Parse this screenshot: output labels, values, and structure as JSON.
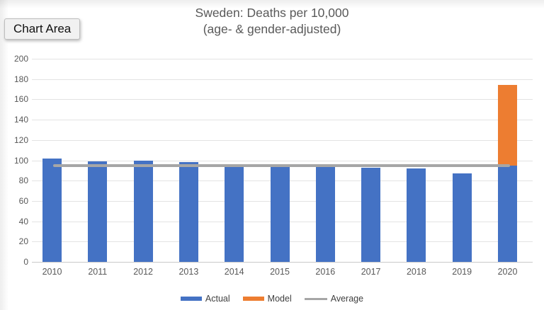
{
  "tooltip": {
    "label": "Chart Area"
  },
  "title": {
    "line1": "Sweden: Deaths per 10,000",
    "line2": "(age- & gender-adjusted)"
  },
  "colors": {
    "actual": "#4472C4",
    "model": "#ED7D31",
    "average": "#A6A6A6",
    "axis_text": "#595959",
    "legend_text": "#404040"
  },
  "legend": {
    "items": [
      {
        "label": "Actual",
        "swatch": "bar",
        "color": "#4472C4"
      },
      {
        "label": "Model",
        "swatch": "bar",
        "color": "#ED7D31"
      },
      {
        "label": "Average",
        "swatch": "line",
        "color": "#A6A6A6"
      }
    ]
  },
  "chart_data": {
    "type": "bar",
    "title": "Sweden: Deaths per 10,000 (age- & gender-adjusted)",
    "categories": [
      "2010",
      "2011",
      "2012",
      "2013",
      "2014",
      "2015",
      "2016",
      "2017",
      "2018",
      "2019",
      "2020"
    ],
    "series": [
      {
        "name": "Actual",
        "color": "#4472C4",
        "values": [
          102,
          99,
          100,
          98,
          94,
          94,
          94,
          93,
          92,
          87,
          95
        ]
      },
      {
        "name": "Model",
        "color": "#ED7D31",
        "values": [
          null,
          null,
          null,
          null,
          null,
          null,
          null,
          null,
          null,
          null,
          174
        ]
      }
    ],
    "average_line": {
      "name": "Average",
      "value": 95,
      "color": "#A6A6A6"
    },
    "xlabel": "",
    "ylabel": "",
    "ylim": [
      0,
      200
    ],
    "yticks": [
      0,
      20,
      40,
      60,
      80,
      100,
      120,
      140,
      160,
      180,
      200
    ],
    "grid": true,
    "legend_position": "bottom"
  }
}
